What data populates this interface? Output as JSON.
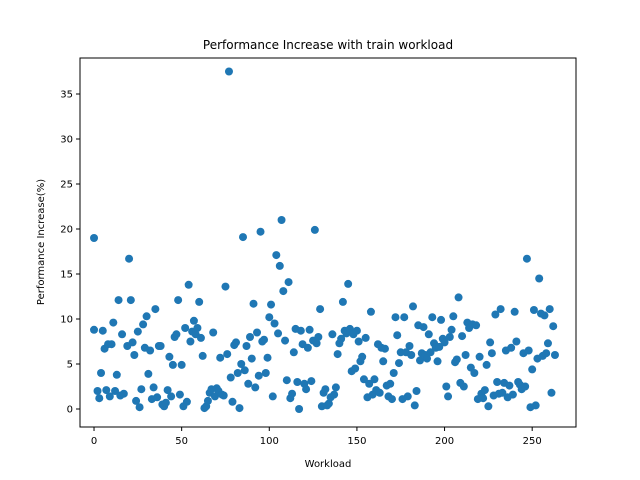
{
  "chart_data": {
    "type": "scatter",
    "title": "Performance Increase with train workload",
    "xlabel": "Workload",
    "ylabel": "Performance Increase(%)",
    "xlim": [
      -8,
      275
    ],
    "ylim": [
      -2,
      39
    ],
    "xticks": [
      0,
      50,
      100,
      150,
      200,
      250
    ],
    "yticks": [
      0,
      5,
      10,
      15,
      20,
      25,
      30,
      35
    ],
    "grid": false,
    "point_color": "#1f77b4",
    "points": [
      [
        0,
        8.8
      ],
      [
        0,
        19.0
      ],
      [
        2,
        2.0
      ],
      [
        3,
        1.2
      ],
      [
        4,
        4.0
      ],
      [
        5,
        8.7
      ],
      [
        6,
        6.7
      ],
      [
        7,
        2.1
      ],
      [
        8,
        7.2
      ],
      [
        9,
        1.4
      ],
      [
        10,
        7.2
      ],
      [
        11,
        9.6
      ],
      [
        12,
        2.0
      ],
      [
        13,
        3.8
      ],
      [
        14,
        12.1
      ],
      [
        15,
        1.5
      ],
      [
        16,
        8.3
      ],
      [
        17,
        1.7
      ],
      [
        19,
        7.0
      ],
      [
        20,
        16.7
      ],
      [
        21,
        12.1
      ],
      [
        22,
        7.4
      ],
      [
        23,
        6.0
      ],
      [
        24,
        0.9
      ],
      [
        25,
        8.6
      ],
      [
        26,
        0.2
      ],
      [
        27,
        2.2
      ],
      [
        28,
        9.4
      ],
      [
        29,
        6.8
      ],
      [
        30,
        10.3
      ],
      [
        31,
        3.9
      ],
      [
        32,
        6.5
      ],
      [
        33,
        1.1
      ],
      [
        34,
        2.4
      ],
      [
        35,
        11.1
      ],
      [
        36,
        1.3
      ],
      [
        37,
        7.0
      ],
      [
        38,
        7.0
      ],
      [
        39,
        0.5
      ],
      [
        40,
        0.3
      ],
      [
        41,
        0.7
      ],
      [
        42,
        2.1
      ],
      [
        43,
        5.8
      ],
      [
        44,
        1.4
      ],
      [
        45,
        4.9
      ],
      [
        46,
        8.0
      ],
      [
        47,
        8.3
      ],
      [
        48,
        12.1
      ],
      [
        49,
        1.6
      ],
      [
        50,
        4.9
      ],
      [
        51,
        0.3
      ],
      [
        52,
        9.0
      ],
      [
        53,
        0.8
      ],
      [
        54,
        13.8
      ],
      [
        55,
        7.5
      ],
      [
        56,
        8.6
      ],
      [
        57,
        9.8
      ],
      [
        58,
        8.3
      ],
      [
        59,
        9.0
      ],
      [
        60,
        11.9
      ],
      [
        61,
        7.9
      ],
      [
        62,
        5.9
      ],
      [
        63,
        0.1
      ],
      [
        64,
        0.3
      ],
      [
        65,
        0.9
      ],
      [
        66,
        1.8
      ],
      [
        67,
        2.2
      ],
      [
        68,
        8.5
      ],
      [
        69,
        1.4
      ],
      [
        70,
        2.3
      ],
      [
        71,
        2.0
      ],
      [
        72,
        5.7
      ],
      [
        73,
        1.6
      ],
      [
        74,
        1.5
      ],
      [
        75,
        13.6
      ],
      [
        76,
        6.1
      ],
      [
        77,
        37.5
      ],
      [
        78,
        3.5
      ],
      [
        79,
        0.8
      ],
      [
        80,
        7.1
      ],
      [
        81,
        7.4
      ],
      [
        82,
        4.0
      ],
      [
        83,
        0.1
      ],
      [
        84,
        5.0
      ],
      [
        85,
        19.1
      ],
      [
        86,
        4.3
      ],
      [
        87,
        7.0
      ],
      [
        88,
        2.8
      ],
      [
        89,
        8.0
      ],
      [
        90,
        5.6
      ],
      [
        91,
        11.7
      ],
      [
        92,
        2.4
      ],
      [
        93,
        8.5
      ],
      [
        94,
        3.7
      ],
      [
        95,
        19.7
      ],
      [
        96,
        7.5
      ],
      [
        97,
        7.7
      ],
      [
        98,
        4.0
      ],
      [
        99,
        5.7
      ],
      [
        100,
        10.2
      ],
      [
        101,
        11.6
      ],
      [
        102,
        1.4
      ],
      [
        103,
        9.5
      ],
      [
        104,
        17.1
      ],
      [
        105,
        8.4
      ],
      [
        106,
        15.9
      ],
      [
        107,
        21.0
      ],
      [
        108,
        13.1
      ],
      [
        109,
        7.6
      ],
      [
        110,
        3.2
      ],
      [
        111,
        14.1
      ],
      [
        112,
        1.2
      ],
      [
        113,
        1.7
      ],
      [
        114,
        6.3
      ],
      [
        115,
        8.9
      ],
      [
        116,
        3.0
      ],
      [
        117,
        0.0
      ],
      [
        118,
        8.7
      ],
      [
        119,
        7.2
      ],
      [
        120,
        2.8
      ],
      [
        121,
        2.2
      ],
      [
        122,
        6.8
      ],
      [
        123,
        8.8
      ],
      [
        124,
        3.1
      ],
      [
        125,
        7.6
      ],
      [
        126,
        19.9
      ],
      [
        127,
        7.3
      ],
      [
        128,
        8.0
      ],
      [
        129,
        11.1
      ],
      [
        130,
        0.3
      ],
      [
        131,
        1.8
      ],
      [
        132,
        2.2
      ],
      [
        133,
        0.4
      ],
      [
        134,
        0.6
      ],
      [
        135,
        1.3
      ],
      [
        136,
        8.3
      ],
      [
        137,
        1.6
      ],
      [
        138,
        2.4
      ],
      [
        139,
        6.1
      ],
      [
        140,
        7.3
      ],
      [
        141,
        7.8
      ],
      [
        142,
        11.9
      ],
      [
        143,
        8.7
      ],
      [
        144,
        8.4
      ],
      [
        145,
        13.9
      ],
      [
        146,
        8.9
      ],
      [
        147,
        4.2
      ],
      [
        148,
        8.3
      ],
      [
        149,
        4.5
      ],
      [
        150,
        8.7
      ],
      [
        151,
        7.5
      ],
      [
        152,
        5.3
      ],
      [
        153,
        5.8
      ],
      [
        154,
        3.3
      ],
      [
        155,
        7.9
      ],
      [
        156,
        1.3
      ],
      [
        157,
        2.8
      ],
      [
        158,
        10.8
      ],
      [
        159,
        1.6
      ],
      [
        160,
        3.3
      ],
      [
        161,
        2.1
      ],
      [
        162,
        7.2
      ],
      [
        163,
        1.8
      ],
      [
        164,
        6.8
      ],
      [
        165,
        5.3
      ],
      [
        166,
        6.7
      ],
      [
        167,
        2.6
      ],
      [
        168,
        1.4
      ],
      [
        169,
        2.8
      ],
      [
        170,
        1.1
      ],
      [
        171,
        4.0
      ],
      [
        172,
        10.2
      ],
      [
        173,
        8.2
      ],
      [
        174,
        5.1
      ],
      [
        175,
        6.3
      ],
      [
        176,
        1.1
      ],
      [
        177,
        10.2
      ],
      [
        178,
        6.3
      ],
      [
        179,
        1.4
      ],
      [
        180,
        7.0
      ],
      [
        181,
        6.0
      ],
      [
        182,
        11.4
      ],
      [
        183,
        0.4
      ],
      [
        184,
        2.0
      ],
      [
        185,
        9.3
      ],
      [
        186,
        5.4
      ],
      [
        187,
        6.2
      ],
      [
        188,
        9.1
      ],
      [
        189,
        6.0
      ],
      [
        190,
        5.6
      ],
      [
        191,
        8.3
      ],
      [
        192,
        6.3
      ],
      [
        193,
        10.2
      ],
      [
        194,
        7.3
      ],
      [
        195,
        6.8
      ],
      [
        196,
        5.3
      ],
      [
        197,
        6.9
      ],
      [
        198,
        9.9
      ],
      [
        199,
        7.8
      ],
      [
        200,
        7.4
      ],
      [
        201,
        2.5
      ],
      [
        202,
        1.4
      ],
      [
        203,
        8.0
      ],
      [
        204,
        8.8
      ],
      [
        205,
        10.3
      ],
      [
        206,
        5.2
      ],
      [
        207,
        5.5
      ],
      [
        208,
        12.4
      ],
      [
        209,
        2.9
      ],
      [
        210,
        8.1
      ],
      [
        211,
        2.5
      ],
      [
        212,
        6.0
      ],
      [
        213,
        9.6
      ],
      [
        214,
        9.0
      ],
      [
        215,
        4.6
      ],
      [
        216,
        9.4
      ],
      [
        217,
        4.0
      ],
      [
        218,
        9.3
      ],
      [
        219,
        1.1
      ],
      [
        220,
        5.8
      ],
      [
        221,
        1.7
      ],
      [
        222,
        1.2
      ],
      [
        223,
        2.1
      ],
      [
        224,
        4.9
      ],
      [
        225,
        0.3
      ],
      [
        226,
        7.4
      ],
      [
        227,
        6.2
      ],
      [
        228,
        1.5
      ],
      [
        229,
        10.5
      ],
      [
        230,
        3.0
      ],
      [
        231,
        1.7
      ],
      [
        232,
        11.1
      ],
      [
        233,
        1.8
      ],
      [
        234,
        2.9
      ],
      [
        235,
        6.5
      ],
      [
        236,
        1.3
      ],
      [
        237,
        2.6
      ],
      [
        238,
        6.8
      ],
      [
        239,
        1.6
      ],
      [
        240,
        10.8
      ],
      [
        241,
        7.5
      ],
      [
        242,
        3.0
      ],
      [
        243,
        2.7
      ],
      [
        244,
        2.2
      ],
      [
        245,
        6.2
      ],
      [
        246,
        2.5
      ],
      [
        247,
        16.7
      ],
      [
        248,
        6.5
      ],
      [
        249,
        0.2
      ],
      [
        250,
        4.4
      ],
      [
        251,
        11.0
      ],
      [
        252,
        0.4
      ],
      [
        253,
        5.6
      ],
      [
        254,
        14.5
      ],
      [
        255,
        10.6
      ],
      [
        256,
        5.9
      ],
      [
        257,
        10.4
      ],
      [
        258,
        6.2
      ],
      [
        259,
        7.3
      ],
      [
        260,
        11.1
      ],
      [
        261,
        1.8
      ],
      [
        262,
        9.2
      ],
      [
        263,
        6.0
      ]
    ]
  }
}
